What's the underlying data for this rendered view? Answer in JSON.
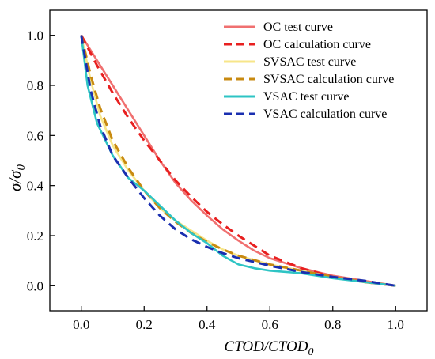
{
  "chart_data": {
    "type": "line",
    "xlabel": "CTOD/CTOD",
    "xlabel_sub": "0",
    "ylabel": "σ/σ",
    "ylabel_sub": "0",
    "xlim": [
      -0.1,
      1.1
    ],
    "ylim": [
      -0.1,
      1.1
    ],
    "xticks": [
      "0.0",
      "0.2",
      "0.4",
      "0.6",
      "0.8",
      "1.0"
    ],
    "yticks": [
      "0.0",
      "0.2",
      "0.4",
      "0.6",
      "0.8",
      "1.0"
    ],
    "grid": false,
    "legend_position": "top-right",
    "series": [
      {
        "name": "OC test curve",
        "color": "#f07070",
        "dash": "solid",
        "points": [
          [
            0,
            1.0
          ],
          [
            0.05,
            0.9
          ],
          [
            0.1,
            0.8
          ],
          [
            0.15,
            0.7
          ],
          [
            0.2,
            0.6
          ],
          [
            0.25,
            0.5
          ],
          [
            0.3,
            0.41
          ],
          [
            0.35,
            0.34
          ],
          [
            0.4,
            0.28
          ],
          [
            0.45,
            0.225
          ],
          [
            0.5,
            0.18
          ],
          [
            0.55,
            0.14
          ],
          [
            0.6,
            0.11
          ],
          [
            0.7,
            0.07
          ],
          [
            0.8,
            0.04
          ],
          [
            0.9,
            0.02
          ],
          [
            1.0,
            0.0
          ]
        ]
      },
      {
        "name": "OC calculation curve",
        "color": "#e82020",
        "dash": "dashed",
        "points": [
          [
            0,
            1.0
          ],
          [
            0.05,
            0.88
          ],
          [
            0.1,
            0.77
          ],
          [
            0.15,
            0.67
          ],
          [
            0.2,
            0.58
          ],
          [
            0.25,
            0.5
          ],
          [
            0.3,
            0.42
          ],
          [
            0.35,
            0.355
          ],
          [
            0.4,
            0.295
          ],
          [
            0.45,
            0.245
          ],
          [
            0.5,
            0.2
          ],
          [
            0.55,
            0.16
          ],
          [
            0.6,
            0.12
          ],
          [
            0.7,
            0.07
          ],
          [
            0.8,
            0.035
          ],
          [
            0.9,
            0.015
          ],
          [
            1.0,
            0.0
          ]
        ]
      },
      {
        "name": "SVSAC test curve",
        "color": "#f7e68a",
        "dash": "solid",
        "points": [
          [
            0,
            1.0
          ],
          [
            0.03,
            0.82
          ],
          [
            0.06,
            0.68
          ],
          [
            0.1,
            0.56
          ],
          [
            0.15,
            0.46
          ],
          [
            0.2,
            0.38
          ],
          [
            0.25,
            0.31
          ],
          [
            0.3,
            0.26
          ],
          [
            0.35,
            0.22
          ],
          [
            0.4,
            0.18
          ],
          [
            0.45,
            0.145
          ],
          [
            0.5,
            0.12
          ],
          [
            0.6,
            0.085
          ],
          [
            0.7,
            0.06
          ],
          [
            0.8,
            0.035
          ],
          [
            0.9,
            0.015
          ],
          [
            1.0,
            0.0
          ]
        ]
      },
      {
        "name": "SVSAC calculation curve",
        "color": "#c88a10",
        "dash": "dashed",
        "points": [
          [
            0,
            1.0
          ],
          [
            0.03,
            0.84
          ],
          [
            0.06,
            0.71
          ],
          [
            0.1,
            0.58
          ],
          [
            0.15,
            0.47
          ],
          [
            0.2,
            0.38
          ],
          [
            0.25,
            0.31
          ],
          [
            0.3,
            0.255
          ],
          [
            0.35,
            0.21
          ],
          [
            0.4,
            0.175
          ],
          [
            0.45,
            0.145
          ],
          [
            0.5,
            0.12
          ],
          [
            0.6,
            0.085
          ],
          [
            0.7,
            0.06
          ],
          [
            0.8,
            0.035
          ],
          [
            0.9,
            0.015
          ],
          [
            1.0,
            0.0
          ]
        ]
      },
      {
        "name": "VSAC test curve",
        "color": "#2ec4c4",
        "dash": "solid",
        "points": [
          [
            0,
            1.0
          ],
          [
            0.02,
            0.8
          ],
          [
            0.05,
            0.65
          ],
          [
            0.1,
            0.52
          ],
          [
            0.15,
            0.43
          ],
          [
            0.2,
            0.38
          ],
          [
            0.25,
            0.32
          ],
          [
            0.3,
            0.26
          ],
          [
            0.35,
            0.21
          ],
          [
            0.4,
            0.17
          ],
          [
            0.45,
            0.12
          ],
          [
            0.5,
            0.085
          ],
          [
            0.55,
            0.07
          ],
          [
            0.6,
            0.06
          ],
          [
            0.7,
            0.05
          ],
          [
            0.8,
            0.03
          ],
          [
            0.9,
            0.015
          ],
          [
            1.0,
            0.0
          ]
        ]
      },
      {
        "name": "VSAC calculation curve",
        "color": "#1a2fb0",
        "dash": "dashed",
        "points": [
          [
            0,
            1.0
          ],
          [
            0.03,
            0.78
          ],
          [
            0.06,
            0.64
          ],
          [
            0.1,
            0.52
          ],
          [
            0.15,
            0.43
          ],
          [
            0.2,
            0.35
          ],
          [
            0.25,
            0.28
          ],
          [
            0.3,
            0.225
          ],
          [
            0.35,
            0.185
          ],
          [
            0.4,
            0.155
          ],
          [
            0.45,
            0.13
          ],
          [
            0.5,
            0.11
          ],
          [
            0.6,
            0.08
          ],
          [
            0.7,
            0.055
          ],
          [
            0.8,
            0.035
          ],
          [
            0.9,
            0.02
          ],
          [
            1.0,
            0.0
          ]
        ]
      }
    ]
  }
}
